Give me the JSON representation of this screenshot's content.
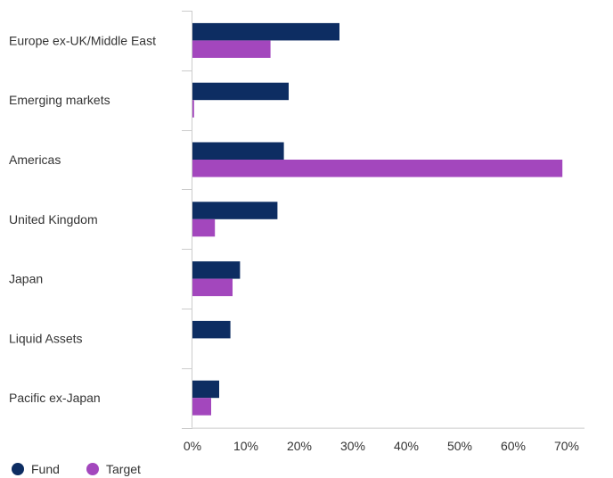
{
  "chart_data": {
    "type": "bar",
    "orientation": "horizontal",
    "title": "",
    "xlabel": "",
    "ylabel": "",
    "categories": [
      "Europe ex-UK/Middle East",
      "Emerging markets",
      "Americas",
      "United Kingdom",
      "Japan",
      "Liquid Assets",
      "Pacific ex-Japan"
    ],
    "series": [
      {
        "name": "Fund",
        "color": "#0d2d62",
        "values": [
          27.5,
          18.0,
          17.1,
          15.9,
          8.9,
          7.1,
          5.0
        ]
      },
      {
        "name": "Target",
        "color": "#a347bd",
        "values": [
          14.6,
          0.3,
          69.2,
          4.2,
          7.5,
          0,
          3.5
        ]
      }
    ],
    "xlim": [
      0,
      70
    ],
    "ticks": [
      0,
      10,
      20,
      30,
      40,
      50,
      60,
      70
    ],
    "tick_labels": [
      "0%",
      "10%",
      "20%",
      "30%",
      "40%",
      "50%",
      "60%",
      "70%"
    ],
    "grid": false,
    "legend": {
      "position": "bottom-left",
      "entries": [
        "Fund",
        "Target"
      ]
    }
  }
}
